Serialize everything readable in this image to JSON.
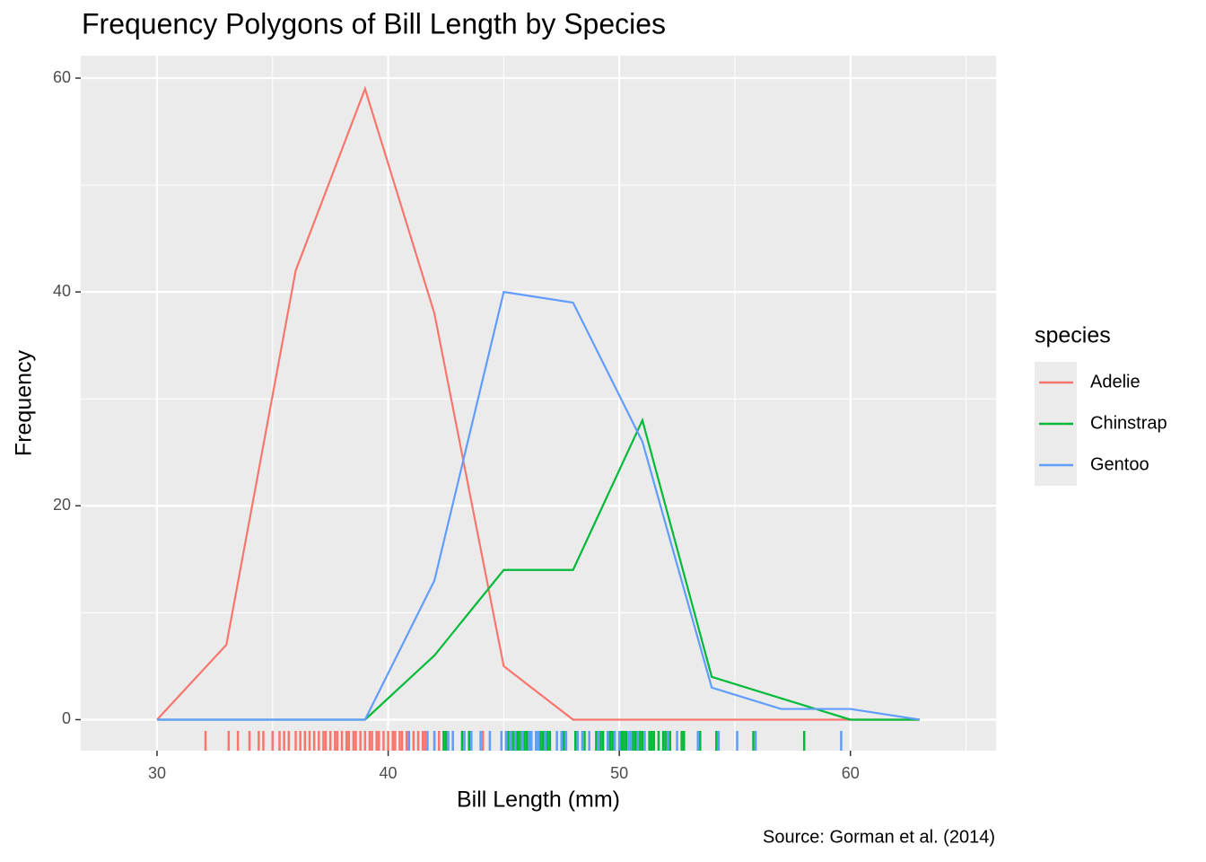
{
  "chart_data": {
    "type": "line",
    "title": "Frequency Polygons of Bill Length by Species",
    "x_label": "Bill Length (mm)",
    "y_label": "Frequency",
    "caption": "Source: Gorman et al. (2014)",
    "legend_title": "species",
    "x": [
      30,
      33,
      36,
      39,
      42,
      45,
      48,
      51,
      54,
      57,
      60,
      63
    ],
    "series": [
      {
        "name": "Adelie",
        "color": "#F8766D",
        "values": [
          0,
          7,
          42,
          59,
          38,
          5,
          0,
          0,
          0,
          0,
          0,
          0
        ],
        "rug": [
          32.1,
          33.1,
          33.5,
          34.0,
          34.4,
          34.6,
          35.0,
          35.3,
          35.5,
          35.7,
          36.0,
          36.2,
          36.4,
          36.6,
          36.8,
          37.0,
          37.2,
          37.3,
          37.5,
          37.7,
          37.8,
          38.0,
          38.2,
          38.3,
          38.5,
          38.6,
          38.8,
          39.0,
          39.2,
          39.3,
          39.5,
          39.6,
          39.8,
          40.0,
          40.2,
          40.3,
          40.5,
          40.6,
          40.8,
          40.9,
          41.1,
          41.3,
          41.5,
          41.6,
          42.0,
          42.2,
          42.5,
          42.8,
          43.2,
          44.1,
          45.6,
          46.0
        ]
      },
      {
        "name": "Chinstrap",
        "color": "#00BA38",
        "values": [
          0,
          0,
          0,
          0,
          6,
          14,
          14,
          28,
          4,
          2,
          0,
          0
        ],
        "rug": [
          40.9,
          42.4,
          42.5,
          43.2,
          43.5,
          45.2,
          45.4,
          45.5,
          45.6,
          45.7,
          45.9,
          46.0,
          46.1,
          46.2,
          46.4,
          46.5,
          46.6,
          46.7,
          46.8,
          46.9,
          47.0,
          47.5,
          47.6,
          48.1,
          48.5,
          49.0,
          49.2,
          49.3,
          49.5,
          49.6,
          49.7,
          49.8,
          50.0,
          50.1,
          50.2,
          50.3,
          50.5,
          50.6,
          50.7,
          50.8,
          50.9,
          51.0,
          51.3,
          51.4,
          51.5,
          51.7,
          51.9,
          52.0,
          52.2,
          52.7,
          52.8,
          53.5,
          54.2,
          55.8,
          58.0
        ]
      },
      {
        "name": "Gentoo",
        "color": "#619CFF",
        "values": [
          0,
          0,
          0,
          0,
          13,
          40,
          39,
          26,
          3,
          1,
          1,
          0
        ],
        "rug": [
          40.9,
          41.7,
          42.0,
          42.6,
          42.8,
          43.3,
          43.6,
          44.0,
          44.4,
          44.9,
          45.1,
          45.3,
          45.5,
          45.8,
          46.1,
          46.2,
          46.4,
          46.5,
          46.8,
          47.3,
          47.5,
          47.7,
          48.2,
          48.4,
          48.7,
          49.1,
          49.5,
          49.8,
          50.0,
          50.4,
          50.5,
          50.8,
          51.1,
          52.1,
          52.5,
          53.4,
          54.3,
          55.1,
          55.9,
          59.6
        ]
      }
    ],
    "xlim": [
      26.7,
      66.3
    ],
    "xticks": [
      30,
      40,
      50,
      60
    ],
    "x_minor_ticks": [
      35,
      45,
      55,
      65
    ],
    "ylim": [
      -2.9,
      62.1
    ],
    "yticks": [
      0,
      20,
      40,
      60
    ],
    "y_minor_ticks": [
      10,
      30,
      50
    ],
    "grid": true,
    "legend_position": "right"
  }
}
